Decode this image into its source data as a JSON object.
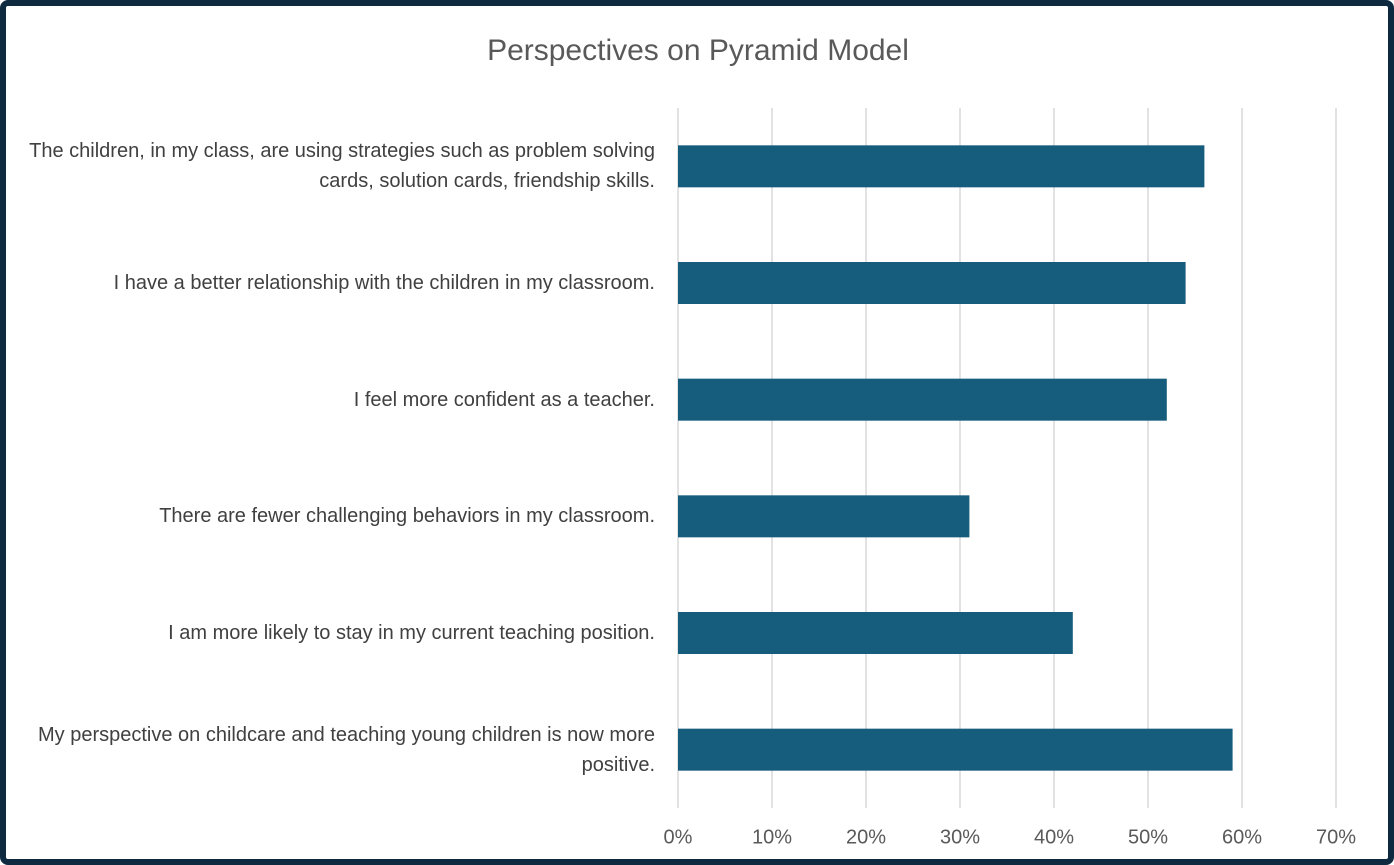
{
  "chart_data": {
    "type": "bar",
    "orientation": "horizontal",
    "title": "Perspectives on Pyramid Model",
    "categories": [
      "The children, in my class, are using strategies such as problem solving cards, solution cards, friendship skills.",
      "I have a better relationship with the children in my classroom.",
      "I feel more confident as a teacher.",
      "There are fewer challenging behaviors in my classroom.",
      "I am more likely to stay in my current teaching position.",
      "My perspective on childcare and teaching young children is now more positive."
    ],
    "values": [
      56,
      54,
      52,
      31,
      42,
      59
    ],
    "color": "#165c7d",
    "xlim": [
      0,
      70
    ],
    "xticks": [
      {
        "value": 0,
        "label": "0%"
      },
      {
        "value": 10,
        "label": "10%"
      },
      {
        "value": 20,
        "label": "20%"
      },
      {
        "value": 30,
        "label": "30%"
      },
      {
        "value": 40,
        "label": "40%"
      },
      {
        "value": 50,
        "label": "50%"
      },
      {
        "value": 60,
        "label": "60%"
      },
      {
        "value": 70,
        "label": "70%"
      }
    ],
    "grid": true
  }
}
